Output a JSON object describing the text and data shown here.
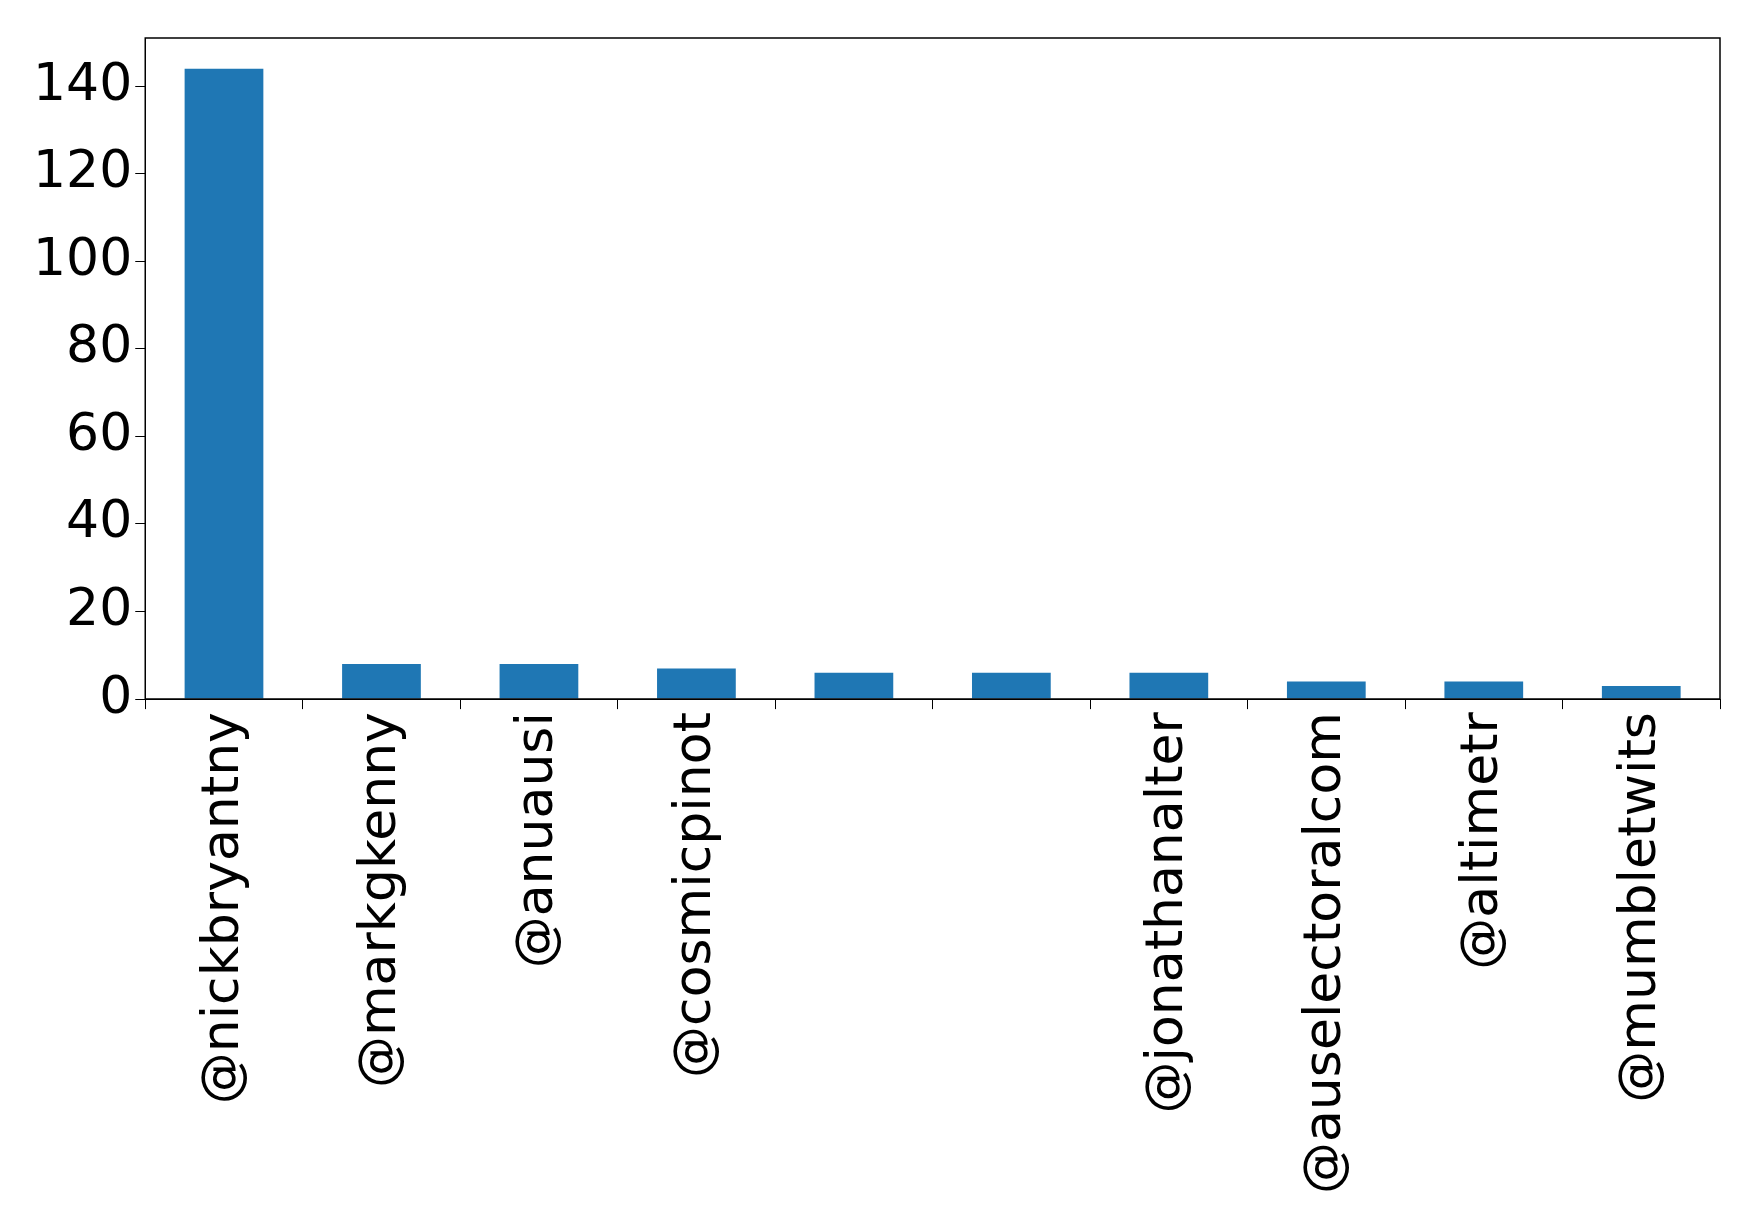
{
  "chart_data": {
    "type": "bar",
    "categories": [
      "@nickbryantny",
      "@markgkenny",
      "@anuausi",
      "@cosmicpinot",
      null,
      null,
      "@jonathanalter",
      "@auselectoralcom",
      "@altimetr",
      "@mumbletwits"
    ],
    "values": [
      144,
      8,
      8,
      7,
      6,
      6,
      6,
      4,
      4,
      3
    ],
    "color": "#1f77b4",
    "ylim": [
      0,
      151
    ],
    "yticks": [
      0,
      20,
      40,
      60,
      80,
      100,
      120,
      140
    ],
    "grid": false,
    "legend": false
  }
}
